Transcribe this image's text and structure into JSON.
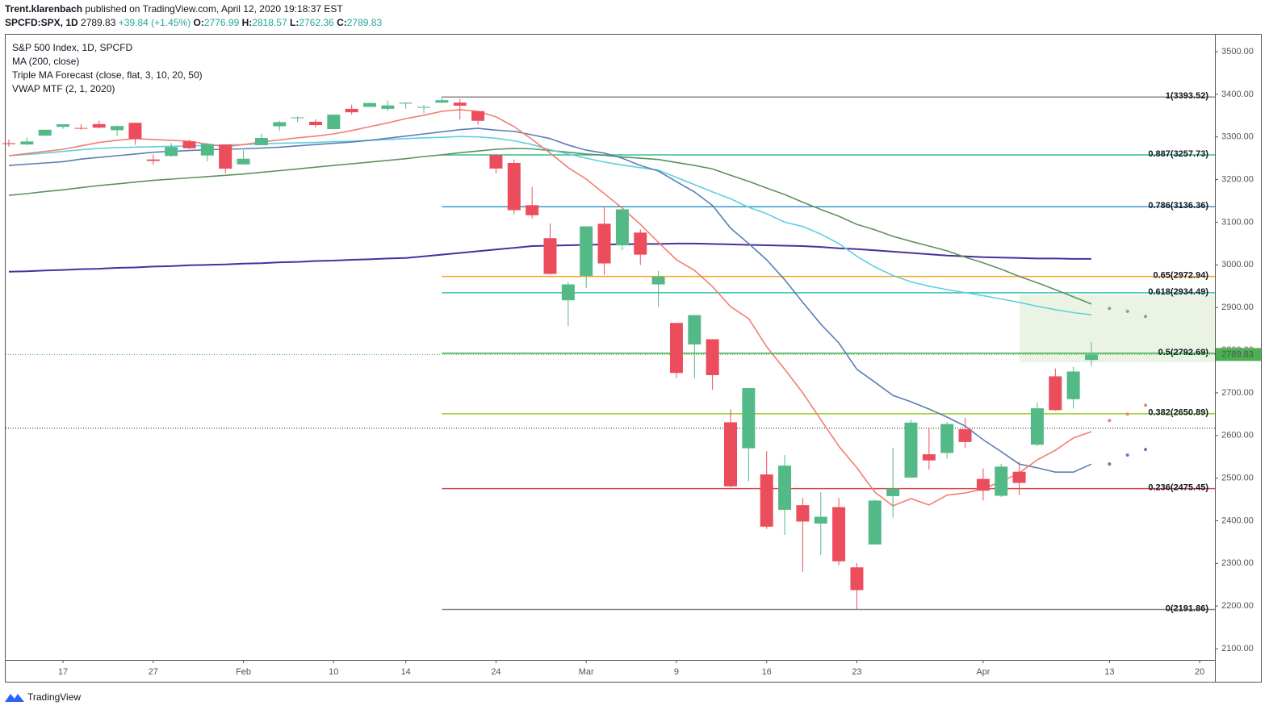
{
  "header": {
    "author": "Trent.klarenbach",
    "published": "published on TradingView.com, April 12, 2020 19:18:37 EST",
    "symbol": "SPCFD:SPX, 1D",
    "last": 2789.83,
    "change": "+39.84 (+1.45%)",
    "ohlc": [
      {
        "label": "O:",
        "value": 2776.99
      },
      {
        "label": "H:",
        "value": 2818.57
      },
      {
        "label": "L:",
        "value": 2762.36
      },
      {
        "label": "C:",
        "value": 2789.83
      }
    ]
  },
  "footer": "TradingView",
  "chart_data": {
    "type": "candlestick",
    "legend": [
      "S&P 500 Index, 1D, SPCFD",
      "MA (200, close)",
      "Triple MA Forecast (close, flat, 3, 10, 20, 50)",
      "VWAP MTF (2, 1, 2020)"
    ],
    "categories": [
      "Jan 14",
      "Jan 15",
      "Jan 16",
      "Jan 17",
      "Jan 21",
      "Jan 22",
      "Jan 23",
      "Jan 24",
      "Jan 27",
      "Jan 28",
      "Jan 29",
      "Jan 30",
      "Jan 31",
      "Feb 3",
      "Feb 4",
      "Feb 5",
      "Feb 6",
      "Feb 7",
      "Feb 10",
      "Feb 11",
      "Feb 12",
      "Feb 13",
      "Feb 14",
      "Feb 18",
      "Feb 19",
      "Feb 20",
      "Feb 21",
      "Feb 24",
      "Feb 25",
      "Feb 26",
      "Feb 27",
      "Feb 28",
      "Mar 2",
      "Mar 3",
      "Mar 4",
      "Mar 5",
      "Mar 6",
      "Mar 9",
      "Mar 10",
      "Mar 11",
      "Mar 12",
      "Mar 13",
      "Mar 16",
      "Mar 17",
      "Mar 18",
      "Mar 19",
      "Mar 20",
      "Mar 23",
      "Mar 24",
      "Mar 25",
      "Mar 26",
      "Mar 27",
      "Mar 30",
      "Mar 31",
      "Apr 1",
      "Apr 2",
      "Apr 3",
      "Apr 6",
      "Apr 7",
      "Apr 8",
      "Apr 9",
      "Apr 13",
      "Apr 14",
      "Apr 15",
      "Apr 16",
      "Apr 17",
      "Apr 20"
    ],
    "open": [
      3285.35,
      3282.27,
      3302.97,
      3323.66,
      3321.03,
      3330.02,
      3315.77,
      3333.1,
      3247.16,
      3255.35,
      3289.46,
      3256.45,
      3282.33,
      3235.66,
      3280.61,
      3324.91,
      3344.92,
      3335.54,
      3318.28,
      3365.87,
      3370.5,
      3365.9,
      3378.08,
      3369.04,
      3380.39,
      3380.45,
      3360.5,
      3257.61,
      3238.94,
      3139.9,
      3062.54,
      2916.9,
      2974.28,
      3096.46,
      3045.75,
      3075.7,
      2954.2,
      2863.89,
      2813.48,
      2825.6,
      2630.86,
      2569.99,
      2508.59,
      2425.66,
      2436.5,
      2393.48,
      2431.94,
      2290.71,
      2344.44,
      2457.77,
      2501.29,
      2555.87,
      2558.98,
      2614.69,
      2498.08,
      2458.54,
      2514.92,
      2578.28,
      2738.65,
      2685.0,
      2776.99,
      null,
      null,
      null,
      null,
      null,
      null
    ],
    "high": [
      3294.25,
      3298.66,
      3317.11,
      3329.88,
      3329.79,
      3337.77,
      3326.88,
      3333.18,
      3258.85,
      3285.78,
      3293.47,
      3285.91,
      3282.33,
      3268.44,
      3306.92,
      3337.58,
      3347.96,
      3341.42,
      3352.26,
      3375.63,
      3381.47,
      3385.09,
      3380.69,
      3375.01,
      3393.52,
      3389.15,
      3360.76,
      3259.81,
      3246.99,
      3182.51,
      3097.07,
      2959.72,
      3090.96,
      3136.72,
      3130.97,
      3083.04,
      2985.93,
      2863.89,
      2882.59,
      2825.6,
      2660.95,
      2711.33,
      2562.98,
      2553.93,
      2453.57,
      2466.97,
      2453.01,
      2300.73,
      2449.71,
      2571.42,
      2637.01,
      2615.91,
      2631.8,
      2641.39,
      2522.75,
      2533.22,
      2538.18,
      2676.85,
      2756.89,
      2760.75,
      2818.57,
      null,
      null,
      null,
      null,
      null,
      null
    ],
    "low": [
      3277.19,
      3280.69,
      3302.82,
      3318.86,
      3316.61,
      3320.04,
      3301.87,
      3281.53,
      3234.5,
      3253.22,
      3271.89,
      3242.8,
      3214.68,
      3235.66,
      3280.61,
      3313.75,
      3334.39,
      3322.12,
      3317.77,
      3352.72,
      3369.72,
      3360.52,
      3366.15,
      3355.61,
      3378.83,
      3341.02,
      3328.45,
      3214.65,
      3118.77,
      3108.99,
      2977.39,
      2855.84,
      2945.19,
      2976.63,
      3034.38,
      2999.83,
      2901.54,
      2734.43,
      2734.0,
      2707.22,
      2478.86,
      2492.37,
      2380.94,
      2367.04,
      2280.52,
      2319.78,
      2295.56,
      2191.86,
      2344.44,
      2407.53,
      2500.72,
      2520.02,
      2545.28,
      2571.15,
      2447.49,
      2455.79,
      2459.96,
      2574.57,
      2657.67,
      2663.3,
      2762.36,
      null,
      null,
      null,
      null,
      null,
      null
    ],
    "close": [
      3283.15,
      3289.29,
      3316.81,
      3329.62,
      3320.79,
      3321.75,
      3325.54,
      3295.47,
      3243.63,
      3276.24,
      3273.4,
      3283.66,
      3225.52,
      3248.92,
      3297.59,
      3334.69,
      3345.78,
      3327.71,
      3352.09,
      3357.75,
      3379.45,
      3373.94,
      3380.16,
      3370.29,
      3386.15,
      3373.23,
      3337.75,
      3225.89,
      3128.21,
      3116.39,
      2978.76,
      2954.22,
      3090.23,
      3003.37,
      3130.12,
      3023.94,
      2972.37,
      2746.56,
      2882.23,
      2741.38,
      2480.64,
      2711.02,
      2386.13,
      2529.19,
      2398.1,
      2409.39,
      2304.92,
      2237.4,
      2447.33,
      2475.56,
      2630.07,
      2541.47,
      2626.65,
      2584.59,
      2470.5,
      2526.9,
      2488.65,
      2663.68,
      2659.41,
      2749.98,
      2789.83,
      null,
      null,
      null,
      null,
      null,
      null
    ],
    "up_color": "#53b987",
    "down_color": "#eb4d5c",
    "series": [
      {
        "color": "#4a2f9e",
        "style": "line",
        "values": [
          2984,
          2985,
          2987,
          2988,
          2990,
          2991,
          2993,
          2994,
          2996,
          2997,
          2999,
          3000,
          3001,
          3003,
          3004,
          3006,
          3007,
          3009,
          3010,
          3012,
          3013,
          3015,
          3016,
          3020,
          3024,
          3028,
          3032,
          3036,
          3040,
          3044,
          3045,
          3046,
          3047,
          3048,
          3048,
          3049,
          3049,
          3050,
          3050,
          3049,
          3048,
          3047,
          3046,
          3045,
          3044,
          3042,
          3039,
          3037,
          3034,
          3031,
          3028,
          3025,
          3022,
          3020,
          3018,
          3017,
          3016,
          3015,
          3015,
          3014,
          3014,
          null,
          null,
          null,
          null,
          null,
          null
        ]
      },
      {
        "color": "#5e9160",
        "style": "line",
        "values": [
          3163,
          3167,
          3172,
          3176,
          3181,
          3186,
          3190,
          3194,
          3198,
          3201,
          3204,
          3207,
          3210,
          3213,
          3217,
          3221,
          3225,
          3229,
          3233,
          3237,
          3241,
          3245,
          3249,
          3254,
          3258,
          3263,
          3267,
          3271,
          3273,
          3272,
          3268,
          3264,
          3260,
          3257,
          3253,
          3250,
          3247,
          3240,
          3233,
          3225,
          3210,
          3196,
          3180,
          3165,
          3147,
          3130,
          3114,
          3095,
          3082,
          3067,
          3055,
          3044,
          3033,
          3018,
          3005,
          2990,
          2973,
          2958,
          2942,
          2925,
          2908,
          null,
          null,
          null,
          null,
          null,
          null
        ]
      },
      {
        "color": "#5fcfdf",
        "style": "line",
        "values": [
          3256,
          3259,
          3262,
          3266,
          3270,
          3273,
          3275,
          3276,
          3277,
          3278,
          3279,
          3280,
          3281,
          3282,
          3284,
          3285,
          3286,
          3287,
          3289,
          3290,
          3292,
          3294,
          3296,
          3298,
          3299,
          3301,
          3300,
          3297,
          3291,
          3282,
          3270,
          3260,
          3250,
          3241,
          3234,
          3228,
          3222,
          3205,
          3188,
          3171,
          3155,
          3135,
          3120,
          3100,
          3090,
          3072,
          3050,
          3020,
          2995,
          2975,
          2960,
          2950,
          2942,
          2935,
          2928,
          2920,
          2912,
          2903,
          2895,
          2888,
          2883,
          null,
          null,
          null,
          null,
          null,
          null
        ]
      },
      {
        "color": "#5a7fb5",
        "style": "line",
        "values": [
          3233,
          3236,
          3239,
          3242,
          3248,
          3252,
          3256,
          3260,
          3264,
          3266,
          3268,
          3270,
          3271,
          3272,
          3274,
          3276,
          3279,
          3282,
          3285,
          3288,
          3292,
          3297,
          3302,
          3307,
          3312,
          3317,
          3320,
          3316,
          3313,
          3305,
          3296,
          3281,
          3269,
          3262,
          3250,
          3233,
          3220,
          3195,
          3171,
          3139,
          3086,
          3050,
          3012,
          2965,
          2912,
          2861,
          2817,
          2755,
          2725,
          2694,
          2679,
          2662,
          2643,
          2622,
          2590,
          2562,
          2533,
          2524,
          2514,
          2514,
          2533,
          null,
          null,
          null,
          null,
          null,
          null
        ]
      },
      {
        "color": "#f08070",
        "style": "line",
        "values": [
          3256,
          3261,
          3266,
          3271,
          3279,
          3287,
          3292,
          3296,
          3294,
          3292,
          3290,
          3283,
          3277,
          3282,
          3288,
          3293,
          3298,
          3302,
          3307,
          3315,
          3324,
          3333,
          3343,
          3351,
          3360,
          3364,
          3360,
          3347,
          3324,
          3294,
          3262,
          3228,
          3201,
          3167,
          3133,
          3095,
          3053,
          3012,
          2987,
          2949,
          2902,
          2874,
          2808,
          2755,
          2700,
          2637,
          2575,
          2524,
          2467,
          2435,
          2452,
          2437,
          2460,
          2465,
          2475,
          2492,
          2512,
          2543,
          2565,
          2594,
          2609,
          null,
          null,
          null,
          null,
          null,
          null
        ]
      },
      {
        "color": "#999999",
        "style": "dots",
        "values": [
          null,
          null,
          null,
          null,
          null,
          null,
          null,
          null,
          null,
          null,
          null,
          null,
          null,
          null,
          null,
          null,
          null,
          null,
          null,
          null,
          null,
          null,
          null,
          null,
          null,
          null,
          null,
          null,
          null,
          null,
          null,
          null,
          null,
          null,
          null,
          null,
          null,
          null,
          null,
          null,
          null,
          null,
          null,
          null,
          null,
          null,
          null,
          null,
          null,
          null,
          null,
          null,
          null,
          null,
          null,
          null,
          null,
          null,
          null,
          null,
          null,
          2898,
          2891,
          2879,
          null,
          null,
          null
        ]
      },
      {
        "color": "#f08070",
        "style": "dots",
        "values": [
          null,
          null,
          null,
          null,
          null,
          null,
          null,
          null,
          null,
          null,
          null,
          null,
          null,
          null,
          null,
          null,
          null,
          null,
          null,
          null,
          null,
          null,
          null,
          null,
          null,
          null,
          null,
          null,
          null,
          null,
          null,
          null,
          null,
          null,
          null,
          null,
          null,
          null,
          null,
          null,
          null,
          null,
          null,
          null,
          null,
          null,
          null,
          null,
          null,
          null,
          null,
          null,
          null,
          null,
          null,
          null,
          null,
          null,
          null,
          null,
          null,
          2635,
          2650,
          2671,
          null,
          null,
          null
        ]
      },
      {
        "color": "#5a7fb5",
        "style": "dots",
        "values": [
          null,
          null,
          null,
          null,
          null,
          null,
          null,
          null,
          null,
          null,
          null,
          null,
          null,
          null,
          null,
          null,
          null,
          null,
          null,
          null,
          null,
          null,
          null,
          null,
          null,
          null,
          null,
          null,
          null,
          null,
          null,
          null,
          null,
          null,
          null,
          null,
          null,
          null,
          null,
          null,
          null,
          null,
          null,
          null,
          null,
          null,
          null,
          null,
          null,
          null,
          null,
          null,
          null,
          null,
          null,
          null,
          null,
          null,
          null,
          null,
          null,
          2533,
          2554,
          2567,
          null,
          null,
          null
        ]
      }
    ],
    "fib_from": "Feb 19",
    "fib_levels": [
      {
        "value": 3393.52,
        "label": "1(3393.52)",
        "color": "#888888"
      },
      {
        "value": 3257.73,
        "label": "0.887(3257.73)",
        "color": "#36c190"
      },
      {
        "value": 3136.36,
        "label": "0.786(3136.36)",
        "color": "#3b95c9"
      },
      {
        "value": 2972.94,
        "label": "0.65(2972.94)",
        "color": "#f5a623"
      },
      {
        "value": 2934.49,
        "label": "0.618(2934.49)",
        "color": "#35c3b1"
      },
      {
        "value": 2792.69,
        "label": "0.5(2792.69)",
        "color": "#3cae4b"
      },
      {
        "value": 2650.89,
        "label": "0.382(2650.89)",
        "color": "#9ccc28"
      },
      {
        "value": 2475.45,
        "label": "0.236(2475.45)",
        "color": "#e0474f"
      },
      {
        "value": 2191.86,
        "label": "0(2191.86)",
        "color": "#888888"
      }
    ],
    "last_price": 2789.83,
    "last_color": "#4caf50",
    "dotted_line": 2617,
    "ylim": [
      2073.6,
      3541.6
    ],
    "yticks": [
      {
        "value": 2100,
        "label": "2100.00"
      },
      {
        "value": 2200,
        "label": "2200.00"
      },
      {
        "value": 2300,
        "label": "2300.00"
      },
      {
        "value": 2400,
        "label": "2400.00"
      },
      {
        "value": 2500,
        "label": "2500.00"
      },
      {
        "value": 2600,
        "label": "2600.00"
      },
      {
        "value": 2700,
        "label": "2700.00"
      },
      {
        "value": 2800,
        "label": "2800.00"
      },
      {
        "value": 2900,
        "label": "2900.00"
      },
      {
        "value": 3000,
        "label": "3000.00"
      },
      {
        "value": 3100,
        "label": "3100.00"
      },
      {
        "value": 3200,
        "label": "3200.00"
      },
      {
        "value": 3300,
        "label": "3300.00"
      },
      {
        "value": 3400,
        "label": "3400.00"
      },
      {
        "value": 3500,
        "label": "3500.00"
      }
    ],
    "xticks": [
      {
        "value": "Jan 17",
        "label": "17"
      },
      {
        "value": "Jan 27",
        "label": "27"
      },
      {
        "value": "Feb 3",
        "label": "Feb"
      },
      {
        "value": "Feb 10",
        "label": "10"
      },
      {
        "value": "Feb 14",
        "label": "14"
      },
      {
        "value": "Feb 24",
        "label": "24"
      },
      {
        "value": "Mar 2",
        "label": "Mar"
      },
      {
        "value": "Mar 9",
        "label": "9"
      },
      {
        "value": "Mar 16",
        "label": "16"
      },
      {
        "value": "Mar 23",
        "label": "23"
      },
      {
        "value": "Apr 1",
        "label": "Apr"
      },
      {
        "value": "Apr 13",
        "label": "13"
      },
      {
        "value": "Apr 20",
        "label": "20"
      }
    ],
    "grid": false
  }
}
